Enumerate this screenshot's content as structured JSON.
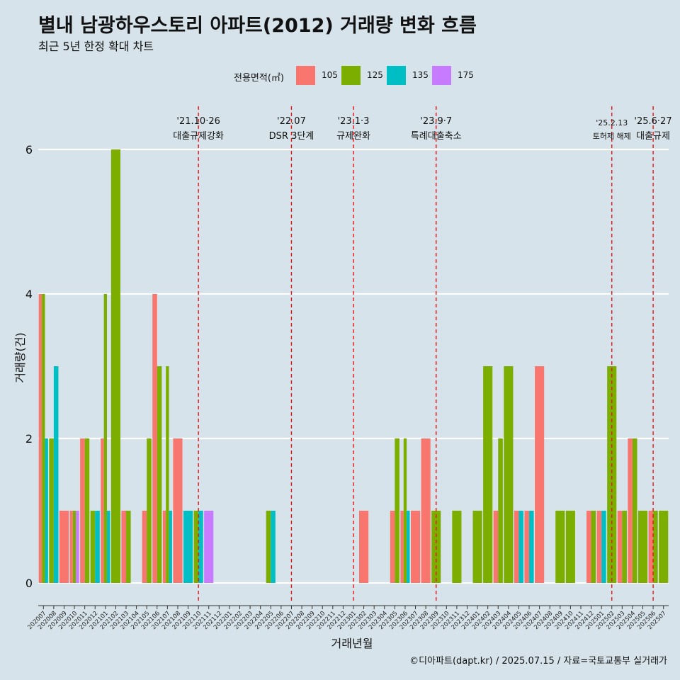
{
  "title": "별내 남광하우스토리 아파트(2012) 거래량 변화 흐름",
  "subtitle": "최근 5년 한정 확대 차트",
  "caption": "©디아파트(dapt.kr) / 2025.07.15 / 자료=국토교통부 실거래가",
  "legend": {
    "title": "전용면적(㎡)",
    "items": [
      {
        "label": "105",
        "color": "#f8766d"
      },
      {
        "label": "125",
        "color": "#7cae00"
      },
      {
        "label": "135",
        "color": "#00bfc4"
      },
      {
        "label": "175",
        "color": "#c77cff"
      }
    ]
  },
  "chart_data": {
    "type": "bar",
    "xlabel": "거래년월",
    "ylabel": "거래량(건)",
    "ylim": [
      0,
      6
    ],
    "yticks": [
      0,
      2,
      4,
      6
    ],
    "categories": [
      "202007",
      "202008",
      "202009",
      "202010",
      "202011",
      "202012",
      "202101",
      "202102",
      "202103",
      "202104",
      "202105",
      "202106",
      "202107",
      "202108",
      "202109",
      "202110",
      "202111",
      "202112",
      "202201",
      "202202",
      "202203",
      "202204",
      "202205",
      "202206",
      "202207",
      "202208",
      "202209",
      "202210",
      "202211",
      "202212",
      "202301",
      "202302",
      "202303",
      "202304",
      "202305",
      "202306",
      "202307",
      "202308",
      "202309",
      "202310",
      "202311",
      "202312",
      "202401",
      "202402",
      "202403",
      "202404",
      "202405",
      "202406",
      "202407",
      "202408",
      "202409",
      "202410",
      "202411",
      "202412",
      "202501",
      "202502",
      "202503",
      "202504",
      "202505",
      "202506",
      "202507"
    ],
    "series": [
      {
        "name": "105",
        "color": "#f8766d",
        "values": [
          4,
          0,
          1,
          1,
          2,
          0,
          2,
          0,
          1,
          0,
          1,
          4,
          1,
          2,
          0,
          0,
          0,
          0,
          0,
          0,
          0,
          0,
          0,
          0,
          0,
          0,
          0,
          0,
          0,
          0,
          0,
          1,
          0,
          0,
          1,
          1,
          1,
          2,
          0,
          0,
          0,
          0,
          0,
          0,
          1,
          0,
          1,
          1,
          3,
          0,
          0,
          0,
          0,
          1,
          1,
          0,
          1,
          2,
          0,
          1,
          0
        ]
      },
      {
        "name": "125",
        "color": "#7cae00",
        "values": [
          4,
          2,
          0,
          1,
          2,
          1,
          4,
          6,
          1,
          0,
          2,
          3,
          3,
          0,
          0,
          1,
          0,
          0,
          0,
          0,
          0,
          0,
          1,
          0,
          0,
          0,
          0,
          0,
          0,
          0,
          0,
          0,
          0,
          0,
          2,
          2,
          0,
          0,
          1,
          0,
          1,
          0,
          1,
          3,
          2,
          3,
          0,
          0,
          0,
          0,
          1,
          1,
          0,
          1,
          0,
          3,
          1,
          2,
          1,
          1,
          1
        ]
      },
      {
        "name": "135",
        "color": "#00bfc4",
        "values": [
          2,
          3,
          0,
          0,
          0,
          1,
          1,
          0,
          0,
          0,
          0,
          0,
          1,
          0,
          1,
          1,
          0,
          0,
          0,
          0,
          0,
          0,
          1,
          0,
          0,
          0,
          0,
          0,
          0,
          0,
          0,
          0,
          0,
          0,
          0,
          1,
          0,
          0,
          0,
          0,
          0,
          0,
          0,
          0,
          0,
          0,
          1,
          1,
          0,
          0,
          0,
          0,
          0,
          0,
          1,
          0,
          0,
          0,
          0,
          0,
          0
        ]
      },
      {
        "name": "175",
        "color": "#c77cff",
        "values": [
          0,
          0,
          0,
          1,
          0,
          0,
          0,
          0,
          0,
          0,
          0,
          0,
          0,
          0,
          0,
          0,
          1,
          0,
          0,
          0,
          0,
          0,
          0,
          0,
          0,
          0,
          0,
          0,
          0,
          0,
          0,
          0,
          0,
          0,
          0,
          0,
          0,
          0,
          0,
          0,
          0,
          0,
          0,
          0,
          0,
          0,
          0,
          0,
          0,
          0,
          0,
          0,
          0,
          0,
          0,
          0,
          0,
          0,
          0,
          0,
          0
        ]
      }
    ],
    "annotations": [
      {
        "x": "202110",
        "date": "'21.10·26",
        "label": "대출규제강화"
      },
      {
        "x": "202207",
        "date": "'22.07",
        "label": "DSR 3단계"
      },
      {
        "x": "202301",
        "date": "'23.1·3",
        "label": "규제완화"
      },
      {
        "x": "202309",
        "date": "'23.9·7",
        "label": "특례대출축소"
      },
      {
        "x": "202502",
        "date": "'25.2.13",
        "label": "토허제 해제"
      },
      {
        "x": "202506",
        "date": "'25.6·27",
        "label": "대출규제"
      }
    ]
  }
}
